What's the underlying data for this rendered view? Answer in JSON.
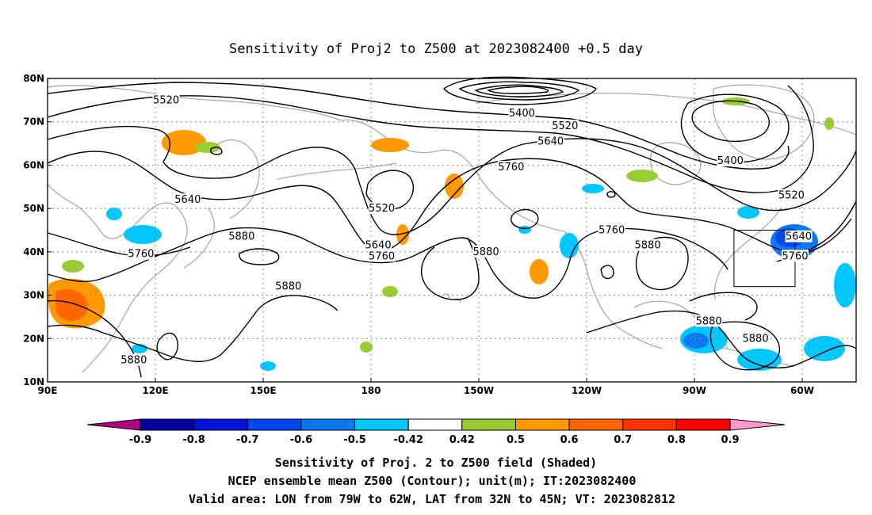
{
  "title": "Sensitivity of Proj2 to Z500 at 2023082400 +0.5 day",
  "lat_labels": [
    "80N",
    "70N",
    "60N",
    "50N",
    "40N",
    "30N",
    "20N",
    "10N"
  ],
  "lon_labels": [
    "90E",
    "120E",
    "150E",
    "180",
    "150W",
    "120W",
    "90W",
    "60W"
  ],
  "contour_labels": [
    {
      "text": "5520",
      "lon": 123,
      "lat": 75
    },
    {
      "text": "5400",
      "lon": -138,
      "lat": 72
    },
    {
      "text": "5520",
      "lon": -126,
      "lat": 69
    },
    {
      "text": "5640",
      "lon": -130,
      "lat": 65.5
    },
    {
      "text": "5400",
      "lon": -80,
      "lat": 61
    },
    {
      "text": "5520",
      "lon": -63,
      "lat": 53
    },
    {
      "text": "5760",
      "lon": -141,
      "lat": 59.5
    },
    {
      "text": "5640",
      "lon": 129,
      "lat": 52
    },
    {
      "text": "5520",
      "lon": -177,
      "lat": 50
    },
    {
      "text": "5760",
      "lon": -113,
      "lat": 45
    },
    {
      "text": "5880",
      "lon": 144,
      "lat": 43.5
    },
    {
      "text": "5640",
      "lon": -178,
      "lat": 41.5
    },
    {
      "text": "5760",
      "lon": -177,
      "lat": 39
    },
    {
      "text": "5880",
      "lon": -148,
      "lat": 40
    },
    {
      "text": "5880",
      "lon": -103,
      "lat": 41.5
    },
    {
      "text": "5640",
      "lon": -61,
      "lat": 43.5
    },
    {
      "text": "5760",
      "lon": -62,
      "lat": 39
    },
    {
      "text": "5760",
      "lon": 116,
      "lat": 39.5
    },
    {
      "text": "5880",
      "lon": 157,
      "lat": 32
    },
    {
      "text": "5880",
      "lon": -86,
      "lat": 24
    },
    {
      "text": "5880",
      "lon": -73,
      "lat": 20
    },
    {
      "text": "5880",
      "lon": 114,
      "lat": 15
    }
  ],
  "valid_box": {
    "lon_min": -79,
    "lon_max": -62,
    "lat_min": 32,
    "lat_max": 45
  },
  "colorbar": {
    "labels": [
      "-0.9",
      "-0.8",
      "-0.7",
      "-0.6",
      "-0.5",
      "-0.42",
      "0.42",
      "0.5",
      "0.6",
      "0.7",
      "0.8",
      "0.9"
    ],
    "colors": [
      "#0000a0",
      "#0014dc",
      "#0046f0",
      "#0a78f5",
      "#00c8ff",
      "#ffffff",
      "#9acd32",
      "#ff9900",
      "#ff6600",
      "#ff3300",
      "#ff0000"
    ],
    "low_color": "#b0007f",
    "high_color": "#ff99cc"
  },
  "captions": [
    "Sensitivity of Proj. 2 to Z500 field (Shaded)",
    "NCEP ensemble mean Z500 (Contour); unit(m); IT:2023082400",
    "Valid area: LON from 79W to 62W, LAT from 32N to 45N; VT: 2023082812"
  ]
}
